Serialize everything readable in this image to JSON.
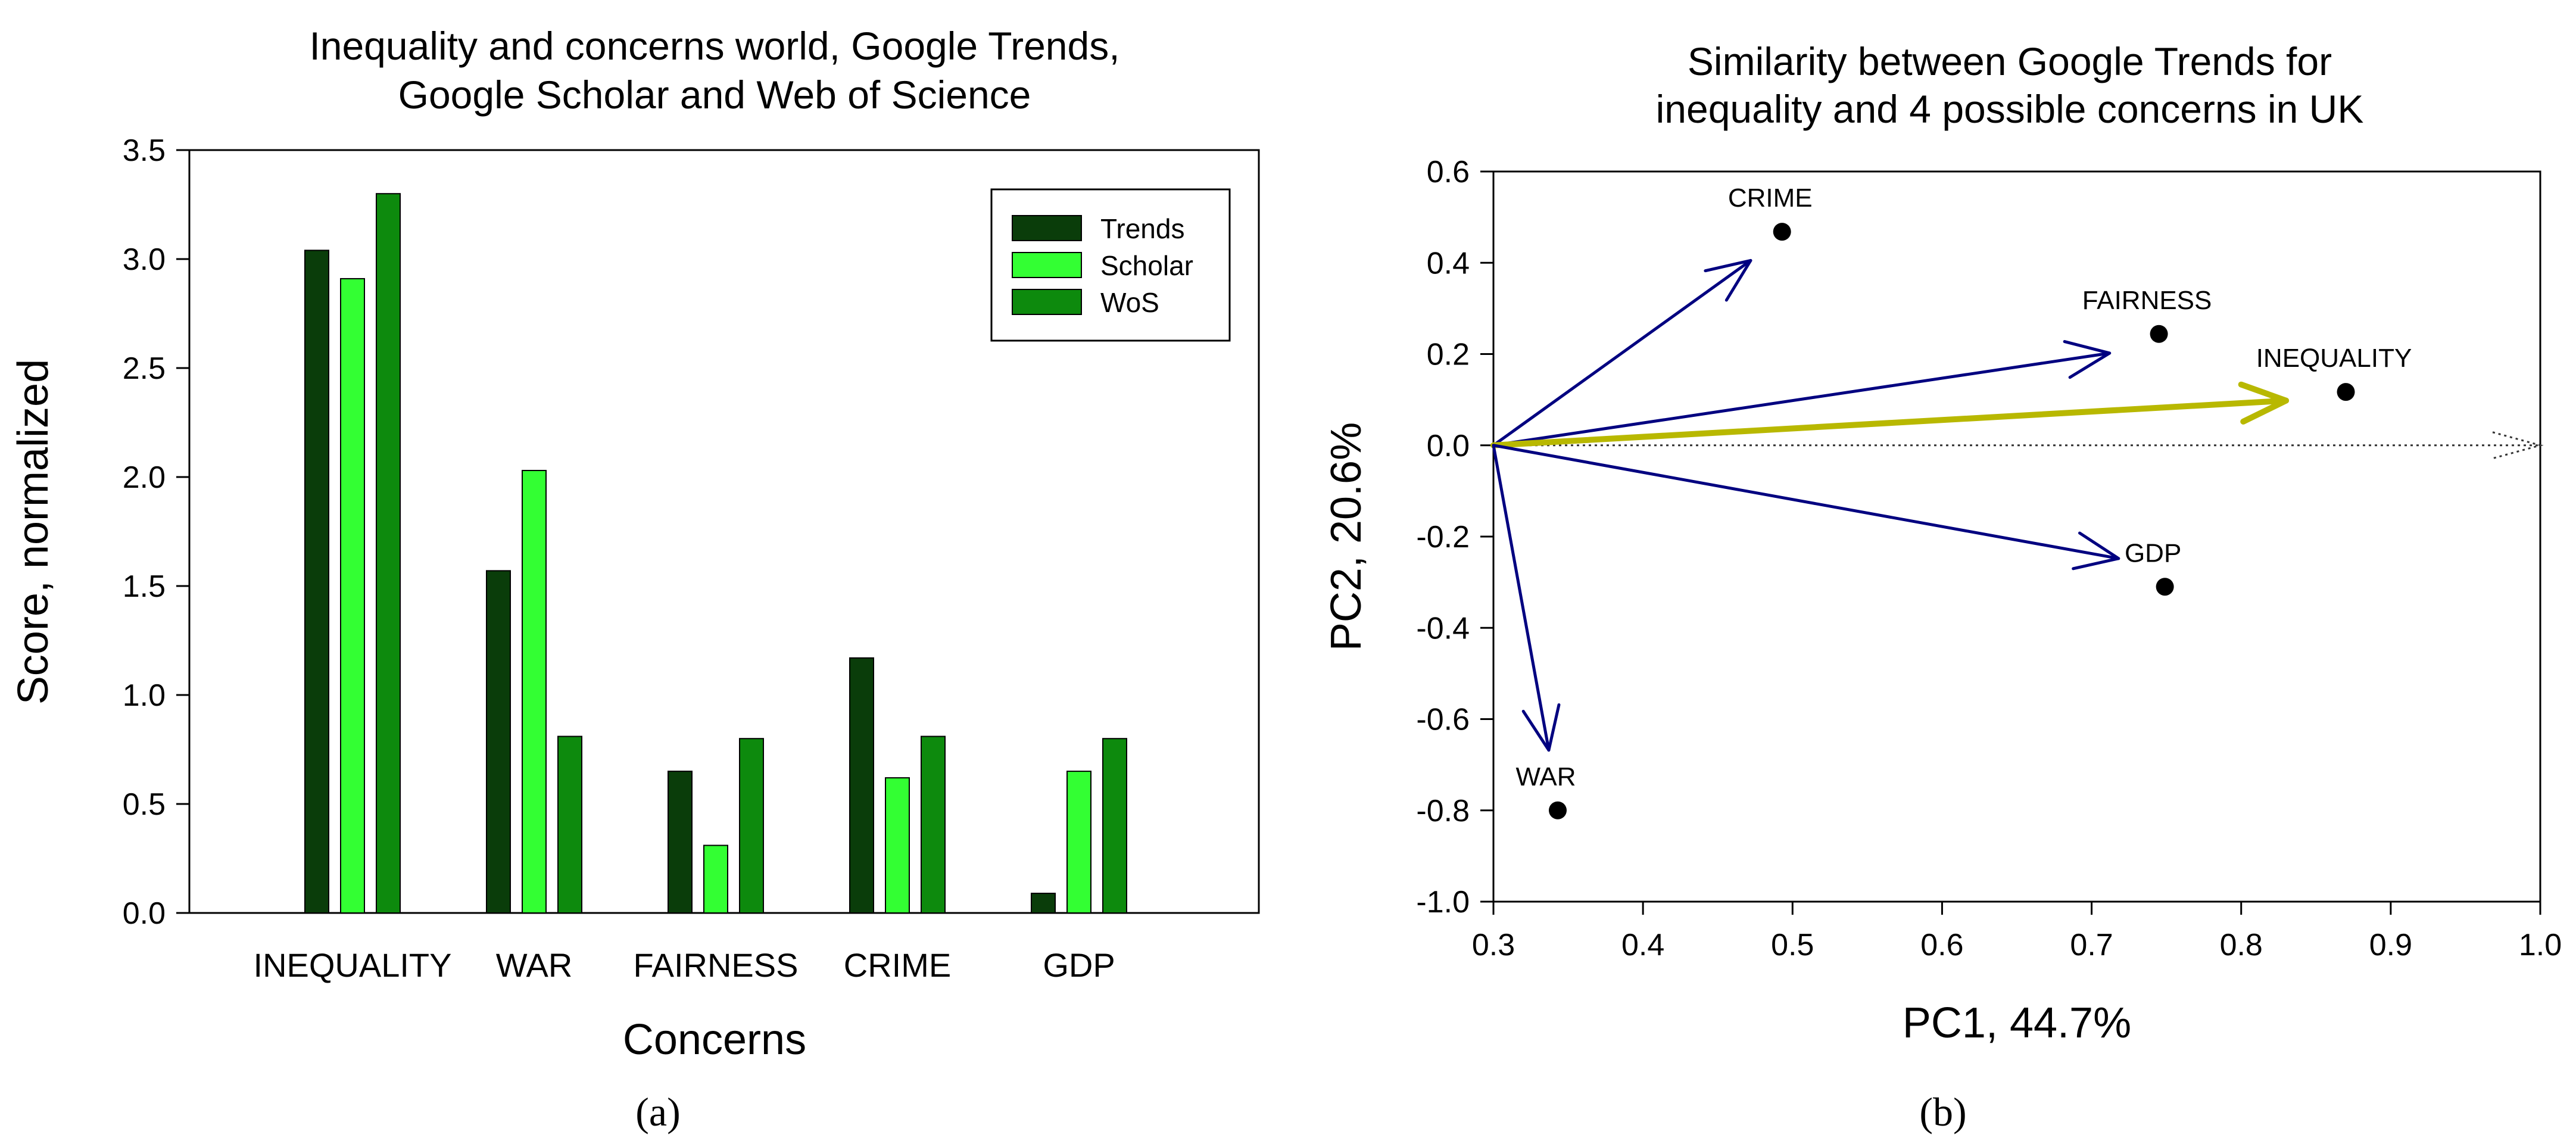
{
  "colors": {
    "trends": "#0a3d0a",
    "scholar": "#33ff33",
    "wos": "#0d8a0d",
    "vector": "#000080",
    "highlight": "#b8b800",
    "point": "#000000"
  },
  "chart_data": [
    {
      "type": "bar",
      "title_lines": [
        "Inequality and concerns world, Google Trends,",
        "Google Scholar and Web of Science"
      ],
      "xlabel": "Concerns",
      "ylabel": "Score, normalized",
      "ylim": [
        0,
        3.5
      ],
      "yticks": [
        "0.0",
        "0.5",
        "1.0",
        "1.5",
        "2.0",
        "2.5",
        "3.0",
        "3.5"
      ],
      "categories": [
        "INEQUALITY",
        "WAR",
        "FAIRNESS",
        "CRIME",
        "GDP"
      ],
      "series": [
        {
          "name": "Trends",
          "values": [
            3.04,
            1.57,
            0.65,
            1.17,
            0.09
          ]
        },
        {
          "name": "Scholar",
          "values": [
            2.91,
            2.03,
            0.31,
            0.62,
            0.65
          ]
        },
        {
          "name": "WoS",
          "values": [
            3.3,
            0.81,
            0.8,
            0.81,
            0.8
          ]
        }
      ],
      "legend_position": "top-right",
      "panel_label": "(a)"
    },
    {
      "type": "scatter",
      "title_lines": [
        "Similarity between Google Trends for",
        "inequality and 4 possible concerns in UK"
      ],
      "xlabel": "PC1, 44.7%",
      "ylabel": "PC2, 20.6%",
      "xlim": [
        0.3,
        1.0
      ],
      "ylim": [
        -1.0,
        0.6
      ],
      "xticks": [
        "0.3",
        "0.4",
        "0.5",
        "0.6",
        "0.7",
        "0.8",
        "0.9",
        "1.0"
      ],
      "yticks": [
        "-1.0",
        "-0.8",
        "-0.6",
        "-0.4",
        "-0.2",
        "0.0",
        "0.2",
        "0.4",
        "0.6"
      ],
      "origin": [
        0.3,
        0.0
      ],
      "points": [
        {
          "label": "CRIME",
          "x": 0.493,
          "y": 0.468
        },
        {
          "label": "FAIRNESS",
          "x": 0.745,
          "y": 0.244
        },
        {
          "label": "INEQUALITY",
          "x": 0.87,
          "y": 0.117
        },
        {
          "label": "GDP",
          "x": 0.749,
          "y": -0.31
        },
        {
          "label": "WAR",
          "x": 0.343,
          "y": -0.8
        }
      ],
      "vectors": [
        {
          "name": "crime",
          "x": 0.472,
          "y": 0.405,
          "highlight": false
        },
        {
          "name": "fairness",
          "x": 0.712,
          "y": 0.202,
          "highlight": false
        },
        {
          "name": "inequality",
          "x": 0.83,
          "y": 0.098,
          "highlight": true
        },
        {
          "name": "gdp",
          "x": 0.718,
          "y": -0.248,
          "highlight": false
        },
        {
          "name": "war",
          "x": 0.337,
          "y": -0.668,
          "highlight": false
        }
      ],
      "reference_axis": {
        "from": 0.3,
        "to": 1.0,
        "y": 0.0,
        "style": "dotted"
      },
      "panel_label": "(b)"
    }
  ]
}
